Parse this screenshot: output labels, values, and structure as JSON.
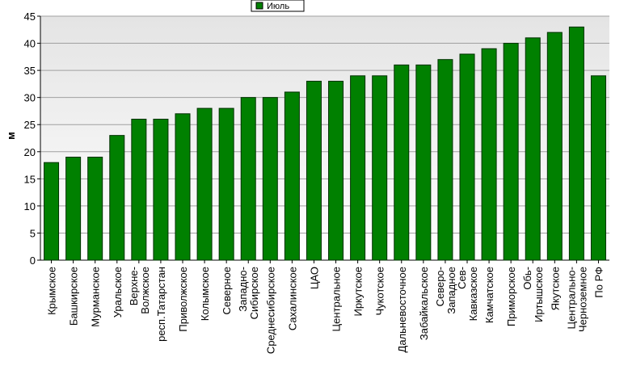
{
  "chart_data": {
    "type": "bar",
    "y_label": "м",
    "categories": [
      "Крымское",
      "Башкирское",
      "Мурманское",
      "Уральское",
      "Верхне-\nВолжское",
      "респ.Татарстан",
      "Приволжское",
      "Колымское",
      "Северное",
      "Западно-\nСибирское",
      "Среднесибирское",
      "Сахалинское",
      "ЦАО",
      "Центральное",
      "Иркутское",
      "Чукотское",
      "Дальневосточное",
      "Забайкальское",
      "Северо-\nЗападное",
      "Сев-\nКавказское",
      "Камчатское",
      "Приморское",
      "Обь-\nИртышское",
      "Якутское",
      "Центрально-\nЧерноземное",
      "По РФ"
    ],
    "series": [
      {
        "name": "Июль",
        "color": "#008000",
        "values": [
          18,
          19,
          19,
          23,
          26,
          26,
          27,
          28,
          28,
          30,
          30,
          31,
          33,
          33,
          34,
          34,
          36,
          36,
          37,
          38,
          39,
          40,
          41,
          42,
          43,
          34
        ]
      }
    ],
    "ylim": [
      0,
      45
    ],
    "yticks": [
      0,
      5,
      10,
      15,
      20,
      25,
      30,
      35,
      40,
      45
    ],
    "grid": true,
    "legend": "top"
  }
}
